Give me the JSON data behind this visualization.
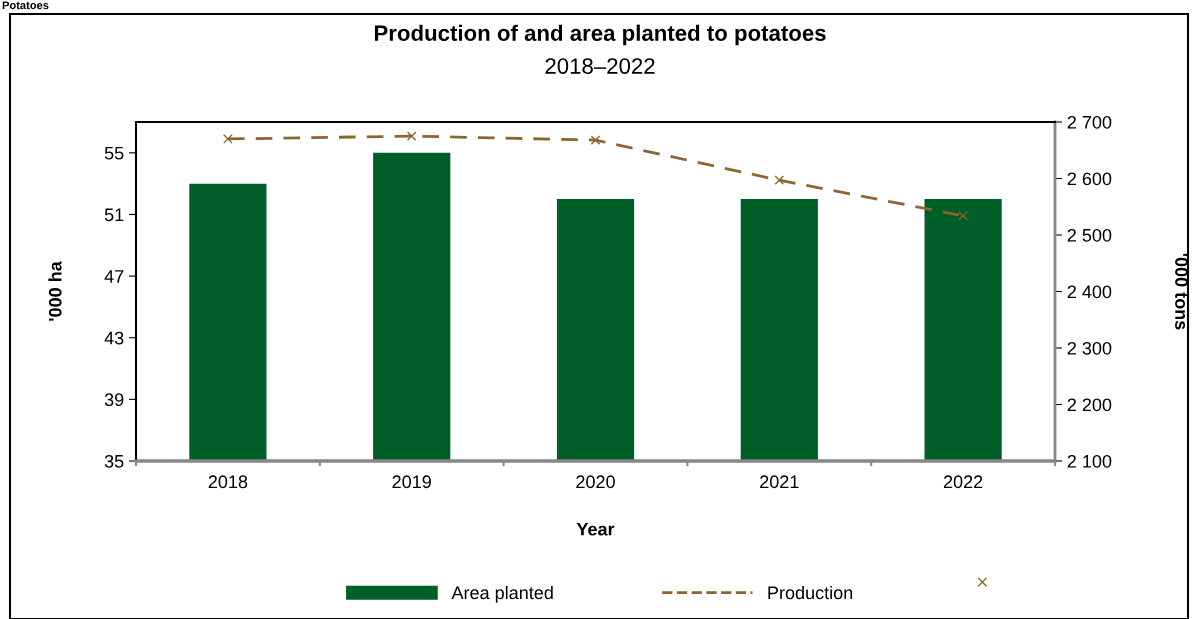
{
  "chart_data": {
    "type": "bar",
    "title": "Production of and area planted to potatoes",
    "subtitle": "2018–2022",
    "xlabel": "Year",
    "ylabel": "'000 ha",
    "y2label": "'000 tons",
    "categories": [
      "2018",
      "2019",
      "2020",
      "2021",
      "2022"
    ],
    "series": [
      {
        "name": "Area planted",
        "type": "bar",
        "color": "#005e28",
        "values": [
          53,
          55,
          52,
          52,
          52
        ]
      },
      {
        "name": "Production",
        "type": "line",
        "axis": "y2",
        "color": "#8c6530",
        "marker": "cross",
        "line_style": "dashed",
        "values": [
          2670,
          2675,
          2668,
          2597,
          2534
        ]
      }
    ],
    "ylim": [
      35,
      57
    ],
    "yticks": [
      35,
      39,
      43,
      47,
      51,
      55
    ],
    "y2lim": [
      2100,
      2700
    ],
    "y2ticks": [
      {
        "value": 2100,
        "label": "2 100"
      },
      {
        "value": 2200,
        "label": "2 200"
      },
      {
        "value": 2300,
        "label": "2 300"
      },
      {
        "value": 2400,
        "label": "2 400"
      },
      {
        "value": 2500,
        "label": "2 500"
      },
      {
        "value": 2600,
        "label": "2 600"
      },
      {
        "value": 2700,
        "label": "2 700"
      }
    ],
    "annotations": [
      "Potatoes"
    ],
    "legend": "bottom",
    "grid": false
  }
}
